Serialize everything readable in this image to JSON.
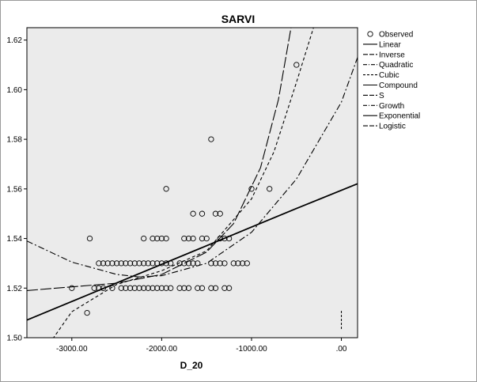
{
  "chart_data": {
    "type": "scatter",
    "title": "SARVI",
    "xlabel": "D_20",
    "ylabel": "",
    "xlim": [
      -3500,
      180
    ],
    "ylim": [
      1.5,
      1.625
    ],
    "xticks": [
      -3000,
      -2000,
      -1000,
      0
    ],
    "xtick_labels": [
      "-3000.00",
      "-2000.00",
      "-1000.00",
      ".00"
    ],
    "yticks": [
      1.5,
      1.52,
      1.54,
      1.56,
      1.58,
      1.6,
      1.62
    ],
    "ytick_labels": [
      "1.50",
      "1.52",
      "1.54",
      "1.56",
      "1.58",
      "1.60",
      "1.62"
    ],
    "grid": false,
    "legend_position": "right",
    "colors": {
      "plot_bg": "#ebebeb",
      "line": "#000000",
      "marker": "#000000"
    },
    "legend": [
      {
        "label": "Observed",
        "style": "marker"
      },
      {
        "label": "Linear",
        "style": "solid"
      },
      {
        "label": "Inverse",
        "style": "longdash"
      },
      {
        "label": "Quadratic",
        "style": "dashdot"
      },
      {
        "label": "Cubic",
        "style": "shortdash"
      },
      {
        "label": "Compound",
        "style": "solid"
      },
      {
        "label": "S",
        "style": "longdash"
      },
      {
        "label": "Growth",
        "style": "dashdot"
      },
      {
        "label": "Exponential",
        "style": "solid"
      },
      {
        "label": "Logistic",
        "style": "longdash"
      }
    ],
    "observed": [
      [
        -2800,
        1.54
      ],
      [
        -2830,
        1.51
      ],
      [
        -3000,
        1.52
      ],
      [
        -2750,
        1.52
      ],
      [
        -2700,
        1.52
      ],
      [
        -2650,
        1.52
      ],
      [
        -2700,
        1.53
      ],
      [
        -2650,
        1.53
      ],
      [
        -2600,
        1.53
      ],
      [
        -2550,
        1.53
      ],
      [
        -2500,
        1.53
      ],
      [
        -2450,
        1.53
      ],
      [
        -2400,
        1.53
      ],
      [
        -2350,
        1.53
      ],
      [
        -2300,
        1.53
      ],
      [
        -2250,
        1.53
      ],
      [
        -2200,
        1.53
      ],
      [
        -2150,
        1.53
      ],
      [
        -2100,
        1.53
      ],
      [
        -2050,
        1.53
      ],
      [
        -2000,
        1.53
      ],
      [
        -1950,
        1.53
      ],
      [
        -1900,
        1.53
      ],
      [
        -2550,
        1.52
      ],
      [
        -2450,
        1.52
      ],
      [
        -2400,
        1.52
      ],
      [
        -2350,
        1.52
      ],
      [
        -2300,
        1.52
      ],
      [
        -2250,
        1.52
      ],
      [
        -2200,
        1.52
      ],
      [
        -2150,
        1.52
      ],
      [
        -2100,
        1.52
      ],
      [
        -2050,
        1.52
      ],
      [
        -2000,
        1.52
      ],
      [
        -1950,
        1.52
      ],
      [
        -1900,
        1.52
      ],
      [
        -1800,
        1.52
      ],
      [
        -1750,
        1.52
      ],
      [
        -1700,
        1.52
      ],
      [
        -1600,
        1.52
      ],
      [
        -1550,
        1.52
      ],
      [
        -1450,
        1.52
      ],
      [
        -1400,
        1.52
      ],
      [
        -1300,
        1.52
      ],
      [
        -1250,
        1.52
      ],
      [
        -2200,
        1.54
      ],
      [
        -2100,
        1.54
      ],
      [
        -2050,
        1.54
      ],
      [
        -2000,
        1.54
      ],
      [
        -1950,
        1.54
      ],
      [
        -1750,
        1.54
      ],
      [
        -1700,
        1.54
      ],
      [
        -1650,
        1.54
      ],
      [
        -1550,
        1.54
      ],
      [
        -1500,
        1.54
      ],
      [
        -1350,
        1.54
      ],
      [
        -1300,
        1.54
      ],
      [
        -1250,
        1.54
      ],
      [
        -1800,
        1.53
      ],
      [
        -1750,
        1.53
      ],
      [
        -1700,
        1.53
      ],
      [
        -1650,
        1.53
      ],
      [
        -1600,
        1.53
      ],
      [
        -1450,
        1.53
      ],
      [
        -1400,
        1.53
      ],
      [
        -1350,
        1.53
      ],
      [
        -1300,
        1.53
      ],
      [
        -1200,
        1.53
      ],
      [
        -1150,
        1.53
      ],
      [
        -1100,
        1.53
      ],
      [
        -1050,
        1.53
      ],
      [
        -1650,
        1.55
      ],
      [
        -1550,
        1.55
      ],
      [
        -1400,
        1.55
      ],
      [
        -1350,
        1.55
      ],
      [
        -1950,
        1.56
      ],
      [
        -1000,
        1.56
      ],
      [
        -800,
        1.56
      ],
      [
        -1450,
        1.58
      ],
      [
        -500,
        1.61
      ]
    ],
    "fits": [
      {
        "name": "Linear",
        "style": "solid",
        "x": [
          -3500,
          -3000,
          -2500,
          -2000,
          -1500,
          -1000,
          -500,
          180
        ],
        "y": [
          1.5071,
          1.5146,
          1.5221,
          1.5296,
          1.5371,
          1.5446,
          1.5521,
          1.5621
        ]
      },
      {
        "name": "Quadratic",
        "style": "dashdot",
        "x": [
          -3500,
          -3000,
          -2500,
          -2250,
          -2000,
          -1500,
          -1000,
          -500,
          0,
          180
        ],
        "y": [
          1.539,
          1.5305,
          1.5255,
          1.5245,
          1.525,
          1.53,
          1.5425,
          1.564,
          1.595,
          1.613
        ]
      },
      {
        "name": "Cubic",
        "style": "shortdash",
        "x": [
          -3500,
          -3300,
          -3000,
          -2500,
          -2000,
          -1500,
          -1000,
          -750,
          -500,
          -310
        ],
        "y": [
          1.475,
          1.495,
          1.5105,
          1.5215,
          1.527,
          1.535,
          1.556,
          1.575,
          1.603,
          1.625
        ]
      },
      {
        "name": "Inverse",
        "style": "longdash",
        "x": [
          -3500,
          -3000,
          -2500,
          -2000,
          -1500,
          -1200,
          -900,
          -700,
          -560
        ],
        "y": [
          1.519,
          1.5205,
          1.522,
          1.5255,
          1.5345,
          1.546,
          1.5685,
          1.596,
          1.625
        ]
      }
    ],
    "annotation_x": 0,
    "annotation_y": [
      1.5035,
      1.511
    ]
  }
}
